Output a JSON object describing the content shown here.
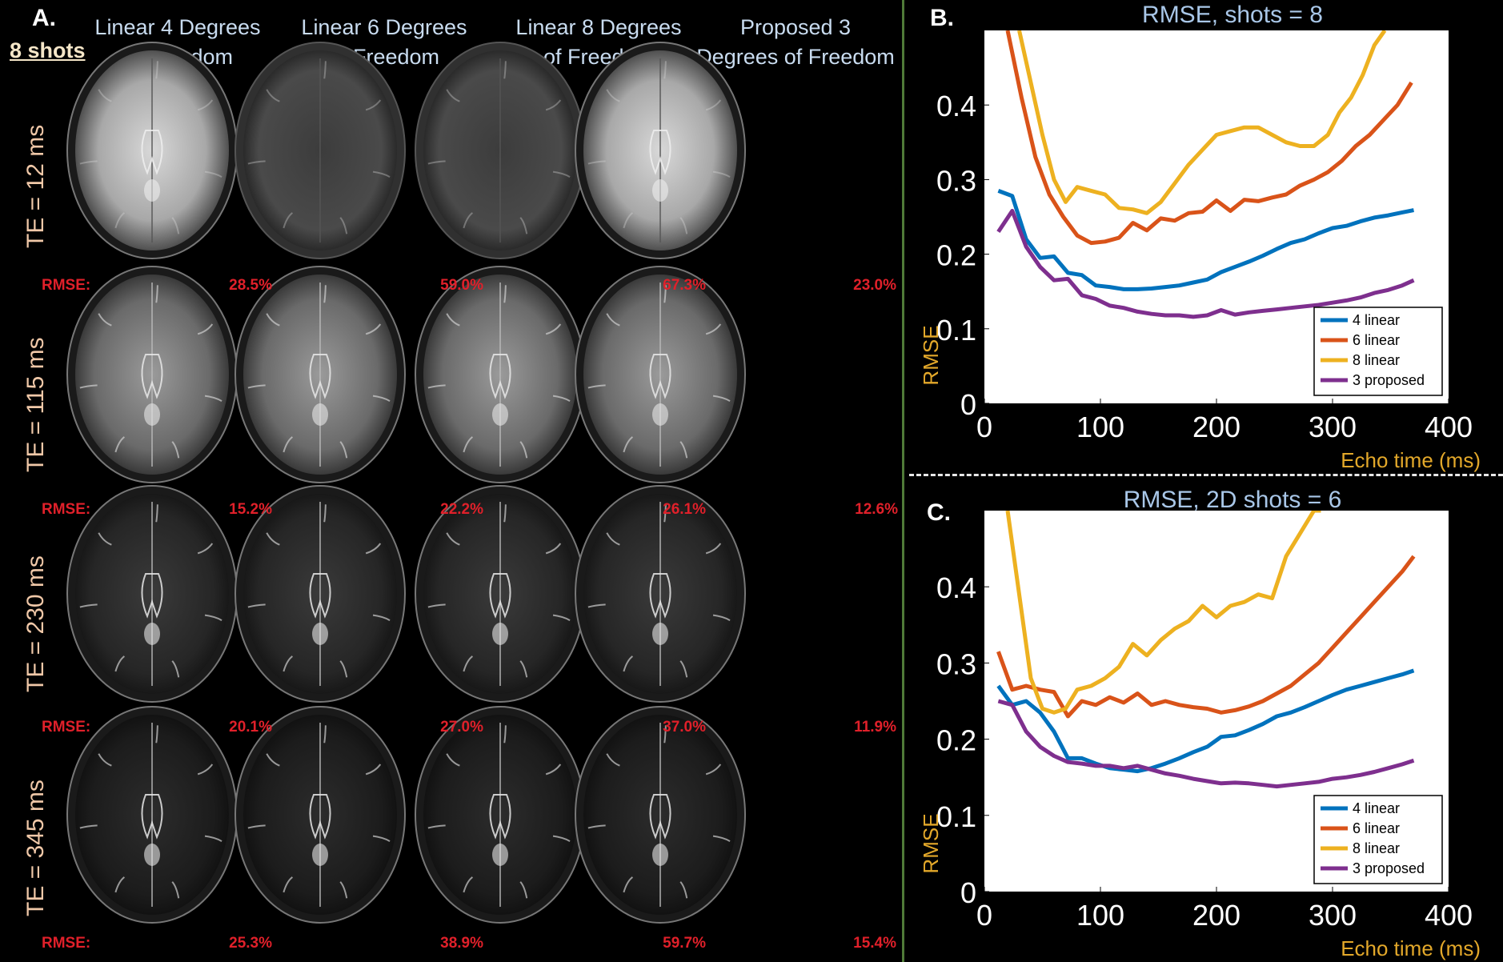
{
  "panel_a": {
    "label": "A.",
    "shots_label": "8 shots",
    "columns": [
      {
        "line1": "Linear 4 Degrees",
        "line2": "of Freedom"
      },
      {
        "line1": "Linear 6 Degrees",
        "line2": "of Freedom"
      },
      {
        "line1": "Linear 8 Degrees",
        "line2": "of Freedom"
      },
      {
        "line1": "Proposed 3",
        "line2": "Degrees of Freedom"
      }
    ],
    "rows": [
      {
        "label": "TE = 12 ms",
        "intensity": 0.62,
        "rmse": [
          "28.5%",
          "59.0%",
          "67.3%",
          "23.0%"
        ]
      },
      {
        "label": "TE = 115 ms",
        "intensity": 0.48,
        "rmse": [
          "15.2%",
          "22.2%",
          "26.1%",
          "12.6%"
        ]
      },
      {
        "label": "TE = 230 ms",
        "intensity": 0.3,
        "rmse": [
          "20.1%",
          "27.0%",
          "37.0%",
          "11.9%"
        ]
      },
      {
        "label": "TE = 345 ms",
        "intensity": 0.22,
        "rmse": [
          "25.3%",
          "38.9%",
          "59.7%",
          "15.4%"
        ]
      }
    ],
    "rmse_label": "RMSE:"
  },
  "chart_data": [
    {
      "panel": "B.",
      "type": "line",
      "title": "RMSE, shots = 8",
      "xlabel": "Echo time (ms)",
      "ylabel": "RMSE",
      "xlim": [
        0,
        400
      ],
      "ylim": [
        0,
        0.5
      ],
      "xticks": [
        0,
        100,
        200,
        300,
        400
      ],
      "yticks": [
        0,
        0.1,
        0.2,
        0.3,
        0.4
      ],
      "ytick_labels": [
        "0",
        "0.1",
        "0.2",
        "0.3",
        "0.4"
      ],
      "legend_position": "bottom-right",
      "series": [
        {
          "name": "4 linear",
          "color": "#0072BD",
          "x": [
            12,
            24,
            36,
            48,
            60,
            72,
            84,
            96,
            108,
            120,
            132,
            144,
            156,
            168,
            180,
            192,
            204,
            216,
            228,
            240,
            252,
            264,
            276,
            288,
            300,
            312,
            324,
            336,
            348,
            360,
            370
          ],
          "y": [
            0.285,
            0.278,
            0.22,
            0.195,
            0.197,
            0.175,
            0.172,
            0.158,
            0.156,
            0.153,
            0.153,
            0.154,
            0.156,
            0.158,
            0.162,
            0.166,
            0.176,
            0.183,
            0.19,
            0.198,
            0.207,
            0.215,
            0.22,
            0.228,
            0.235,
            0.238,
            0.244,
            0.249,
            0.252,
            0.256,
            0.259
          ]
        },
        {
          "name": "6 linear",
          "color": "#D95319",
          "x": [
            20,
            32,
            44,
            56,
            68,
            80,
            92,
            104,
            116,
            128,
            140,
            152,
            164,
            176,
            188,
            200,
            212,
            224,
            236,
            248,
            260,
            272,
            284,
            296,
            308,
            320,
            332,
            344,
            356,
            368
          ],
          "y": [
            0.5,
            0.41,
            0.33,
            0.28,
            0.25,
            0.225,
            0.215,
            0.217,
            0.222,
            0.242,
            0.232,
            0.248,
            0.245,
            0.255,
            0.257,
            0.272,
            0.258,
            0.273,
            0.271,
            0.276,
            0.28,
            0.292,
            0.3,
            0.31,
            0.325,
            0.345,
            0.36,
            0.38,
            0.4,
            0.43
          ]
        },
        {
          "name": "8 linear",
          "color": "#EDB120",
          "x": [
            30,
            40,
            50,
            60,
            70,
            80,
            92,
            104,
            116,
            128,
            140,
            152,
            164,
            176,
            188,
            200,
            212,
            224,
            236,
            248,
            260,
            272,
            284,
            296,
            306,
            316,
            326,
            336,
            345
          ],
          "y": [
            0.5,
            0.43,
            0.36,
            0.3,
            0.27,
            0.29,
            0.285,
            0.28,
            0.262,
            0.26,
            0.255,
            0.27,
            0.295,
            0.32,
            0.34,
            0.36,
            0.365,
            0.37,
            0.37,
            0.36,
            0.35,
            0.345,
            0.345,
            0.36,
            0.39,
            0.41,
            0.44,
            0.48,
            0.5
          ]
        },
        {
          "name": "3 proposed",
          "color": "#7E2F8E",
          "x": [
            12,
            24,
            36,
            48,
            60,
            72,
            84,
            96,
            108,
            120,
            132,
            144,
            156,
            168,
            180,
            192,
            204,
            216,
            228,
            240,
            252,
            264,
            276,
            288,
            300,
            312,
            324,
            336,
            348,
            360,
            370
          ],
          "y": [
            0.23,
            0.258,
            0.21,
            0.183,
            0.165,
            0.167,
            0.145,
            0.14,
            0.131,
            0.128,
            0.123,
            0.12,
            0.118,
            0.118,
            0.116,
            0.118,
            0.125,
            0.119,
            0.122,
            0.124,
            0.126,
            0.128,
            0.13,
            0.132,
            0.135,
            0.138,
            0.142,
            0.148,
            0.152,
            0.158,
            0.165
          ]
        }
      ]
    },
    {
      "panel": "C.",
      "type": "line",
      "title": "RMSE, 2D shots = 6",
      "xlabel": "Echo time (ms)",
      "ylabel": "RMSE",
      "xlim": [
        0,
        400
      ],
      "ylim": [
        0,
        0.5
      ],
      "xticks": [
        0,
        100,
        200,
        300,
        400
      ],
      "yticks": [
        0,
        0.1,
        0.2,
        0.3,
        0.4
      ],
      "ytick_labels": [
        "0",
        "0.1",
        "0.2",
        "0.3",
        "0.4"
      ],
      "legend_position": "bottom-right",
      "series": [
        {
          "name": "4 linear",
          "color": "#0072BD",
          "x": [
            12,
            24,
            36,
            48,
            60,
            72,
            84,
            96,
            108,
            120,
            132,
            144,
            156,
            168,
            180,
            192,
            204,
            216,
            228,
            240,
            252,
            264,
            276,
            288,
            300,
            312,
            324,
            336,
            348,
            360,
            370
          ],
          "y": [
            0.27,
            0.245,
            0.25,
            0.235,
            0.21,
            0.175,
            0.175,
            0.168,
            0.162,
            0.16,
            0.158,
            0.162,
            0.168,
            0.175,
            0.183,
            0.19,
            0.203,
            0.205,
            0.212,
            0.22,
            0.23,
            0.235,
            0.242,
            0.25,
            0.258,
            0.265,
            0.27,
            0.275,
            0.28,
            0.285,
            0.29
          ]
        },
        {
          "name": "6 linear",
          "color": "#D95319",
          "x": [
            12,
            24,
            36,
            48,
            60,
            72,
            84,
            96,
            108,
            120,
            132,
            144,
            156,
            168,
            180,
            192,
            204,
            216,
            228,
            240,
            252,
            264,
            276,
            288,
            300,
            312,
            324,
            336,
            348,
            360,
            370
          ],
          "y": [
            0.315,
            0.265,
            0.27,
            0.265,
            0.262,
            0.23,
            0.25,
            0.245,
            0.255,
            0.248,
            0.26,
            0.245,
            0.25,
            0.245,
            0.242,
            0.24,
            0.235,
            0.238,
            0.243,
            0.25,
            0.26,
            0.27,
            0.285,
            0.3,
            0.32,
            0.34,
            0.36,
            0.38,
            0.4,
            0.42,
            0.44
          ]
        },
        {
          "name": "8 linear",
          "color": "#EDB120",
          "x": [
            20,
            30,
            40,
            50,
            60,
            70,
            80,
            92,
            104,
            116,
            128,
            140,
            152,
            164,
            176,
            188,
            200,
            212,
            224,
            236,
            248,
            260,
            272,
            284,
            290
          ],
          "y": [
            0.5,
            0.39,
            0.28,
            0.24,
            0.235,
            0.24,
            0.265,
            0.27,
            0.28,
            0.295,
            0.325,
            0.31,
            0.33,
            0.345,
            0.355,
            0.375,
            0.36,
            0.375,
            0.38,
            0.39,
            0.385,
            0.44,
            0.47,
            0.5,
            0.5
          ]
        },
        {
          "name": "3 proposed",
          "color": "#7E2F8E",
          "x": [
            12,
            24,
            36,
            48,
            60,
            72,
            84,
            96,
            108,
            120,
            132,
            144,
            156,
            168,
            180,
            192,
            204,
            216,
            228,
            240,
            252,
            264,
            276,
            288,
            300,
            312,
            324,
            336,
            348,
            360,
            370
          ],
          "y": [
            0.25,
            0.245,
            0.21,
            0.19,
            0.178,
            0.17,
            0.168,
            0.165,
            0.165,
            0.162,
            0.165,
            0.16,
            0.155,
            0.152,
            0.148,
            0.145,
            0.142,
            0.143,
            0.142,
            0.14,
            0.138,
            0.14,
            0.142,
            0.144,
            0.148,
            0.15,
            0.153,
            0.157,
            0.162,
            0.167,
            0.172
          ]
        }
      ]
    }
  ]
}
